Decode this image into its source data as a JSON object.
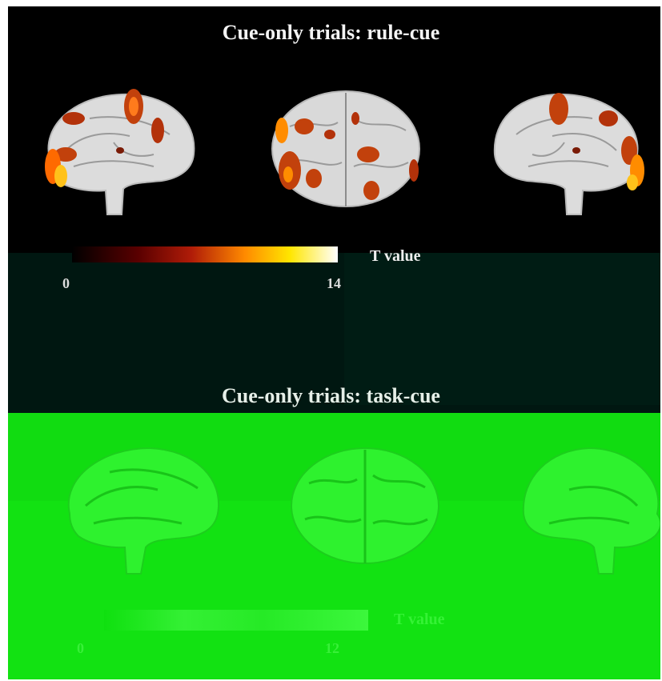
{
  "panels": {
    "top": {
      "title": "Cue-only trials: rule-cue",
      "colorbar": {
        "label": "T value",
        "min_label": "0",
        "max_label": "14",
        "min": 0,
        "max": 14
      },
      "views": [
        "left-sagittal-brain",
        "dorsal-axial-brain",
        "right-sagittal-brain"
      ]
    },
    "bottom": {
      "title": "Cue-only trials: task-cue",
      "colorbar": {
        "label": "T value",
        "min_label": "0",
        "max_label": "12",
        "min": 0,
        "max": 12
      },
      "views": [
        "left-sagittal-brain",
        "dorsal-axial-brain",
        "right-sagittal-brain"
      ]
    }
  },
  "colors": {
    "top_background": "#000000",
    "bottom_background": "#12e212",
    "activation_hot": "#ff6a00",
    "brain_gray": "#d9d9d9",
    "brain_green": "#2ef22e"
  }
}
